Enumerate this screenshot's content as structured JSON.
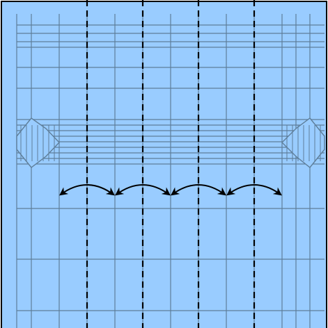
{
  "diagram": {
    "kind": "origami-fold-diagram",
    "description_visible_text": "",
    "colors": {
      "paper": "#99ccff",
      "paper_border": "#000000",
      "crease": "#5e7e99",
      "fold_line": "#000000",
      "arrow": "#000000"
    },
    "valley_fold_lines": {
      "count": 4,
      "style": "dashed"
    },
    "fold_arrows": {
      "count": 4,
      "style": "double-headed-curved"
    },
    "side_flaps": {
      "count": 2,
      "shape": "hexagon-hatched"
    }
  }
}
